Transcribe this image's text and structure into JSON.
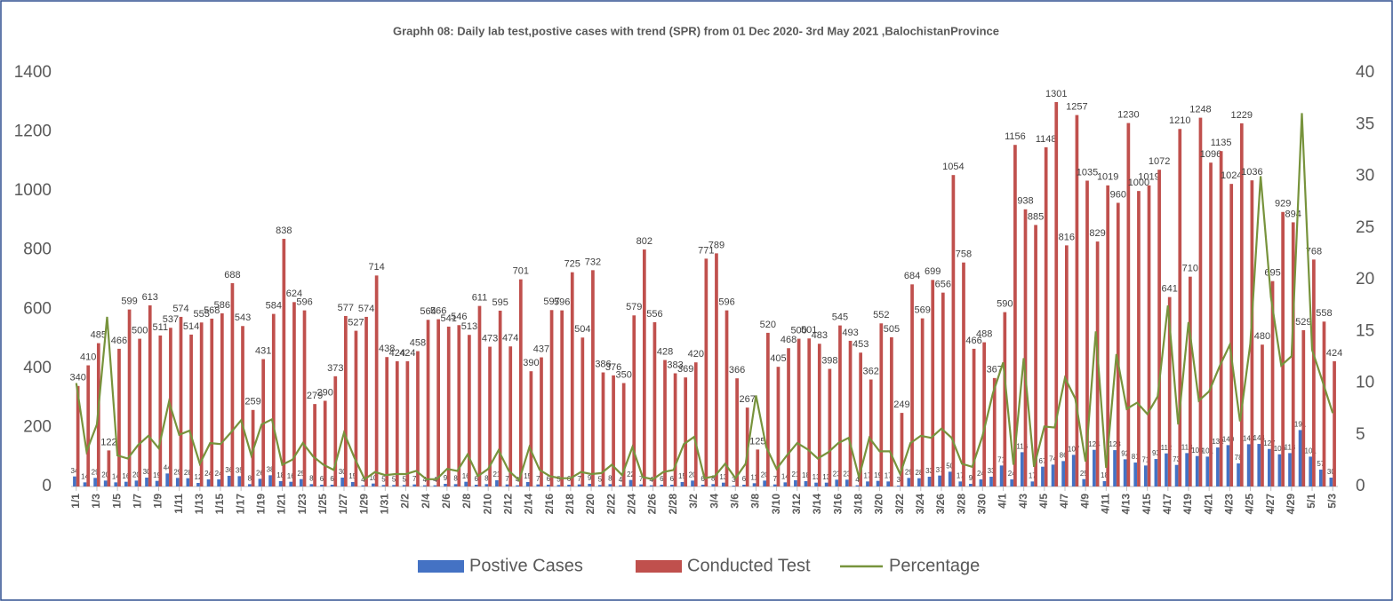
{
  "chart_data": {
    "type": "bar_line",
    "title": "Graphh 08: Daily lab test,postive cases with trend (SPR) from 01 Dec 2020- 3rd  May  2021 ,BalochistanProvince",
    "categories": [
      "1/1",
      null,
      "1/3",
      null,
      "1/5",
      null,
      "1/7",
      null,
      "1/9",
      null,
      "1/11",
      null,
      "1/13",
      null,
      "1/15",
      null,
      "1/17",
      null,
      "1/19",
      null,
      "1/21",
      null,
      "1/23",
      null,
      "1/25",
      null,
      "1/27",
      null,
      "1/29",
      null,
      "1/31",
      null,
      "2/2",
      null,
      "2/4",
      null,
      "2/6",
      null,
      "2/8",
      null,
      "2/10",
      null,
      "2/12",
      null,
      "2/14",
      null,
      "2/16",
      null,
      "2/18",
      null,
      "2/20",
      null,
      "2/22",
      null,
      "2/24",
      null,
      "2/26",
      null,
      "2/28",
      null,
      "3/2",
      null,
      "3/4",
      null,
      "3/6",
      null,
      "3/8",
      null,
      "3/10",
      null,
      "3/12",
      null,
      "3/14",
      null,
      "3/16",
      null,
      "3/18",
      null,
      "3/20",
      null,
      "3/22",
      null,
      "3/24",
      null,
      "3/26",
      null,
      "3/28",
      null,
      "3/30",
      null,
      "4/1",
      null,
      "4/3",
      null,
      "4/5",
      null,
      "4/7",
      null,
      "4/9",
      null,
      "4/11",
      null,
      "4/13",
      null,
      "4/15",
      null,
      "4/17",
      null,
      "4/19",
      null,
      "4/21",
      null,
      "4/23",
      null,
      "4/25",
      null,
      "4/27",
      null,
      "4/29",
      null,
      "5/1",
      null,
      "5/3"
    ],
    "series": [
      {
        "name": "Postive Cases",
        "color": "#4472c4",
        "axis": "y",
        "values": [
          34,
          14,
          29,
          20,
          14,
          16,
          20,
          30,
          19,
          44,
          29,
          28,
          12,
          24,
          24,
          36,
          35,
          8,
          26,
          38,
          18,
          16,
          25,
          8,
          6,
          6,
          30,
          15,
          4,
          10,
          5,
          5,
          5,
          7,
          4,
          4,
          9,
          8,
          16,
          6,
          8,
          21,
          7,
          4,
          15,
          7,
          6,
          5,
          6,
          7,
          9,
          5,
          8,
          4,
          22,
          7,
          4,
          6,
          6,
          15,
          20,
          6,
          8,
          13,
          3,
          6,
          11,
          20,
          7,
          14,
          21,
          18,
          13,
          13,
          23,
          23,
          4,
          17,
          19,
          17,
          3,
          29,
          28,
          33,
          37,
          50,
          17,
          9,
          24,
          33,
          71,
          24,
          116,
          17,
          67,
          74,
          86,
          107,
          25,
          124,
          18,
          123,
          92,
          81,
          71,
          93,
          112,
          73,
          113,
          103,
          101,
          132,
          140,
          78,
          143,
          144,
          127,
          109,
          113,
          191,
          101,
          57,
          30
        ]
      },
      {
        "name": "Conducted Test",
        "color": "#c0504d",
        "axis": "y",
        "values": [
          340,
          410,
          485,
          122,
          466,
          599,
          500,
          613,
          511,
          537,
          574,
          514,
          555,
          568,
          586,
          688,
          543,
          259,
          431,
          584,
          838,
          624,
          596,
          279,
          290,
          373,
          577,
          527,
          574,
          714,
          438,
          424,
          424,
          458,
          564,
          566,
          541,
          546,
          513,
          611,
          473,
          595,
          474,
          701,
          390,
          437,
          597,
          596,
          725,
          504,
          732,
          386,
          376,
          350,
          579,
          802,
          556,
          428,
          383,
          369,
          420,
          771,
          789,
          596,
          366,
          267,
          125,
          520,
          405,
          468,
          500,
          501,
          483,
          398,
          545,
          493,
          453,
          362,
          552,
          505,
          249,
          684,
          569,
          699,
          656,
          1054,
          758,
          466,
          488,
          367,
          590,
          1156,
          938,
          885,
          1148,
          1301,
          816,
          1257,
          1035,
          829,
          1019,
          960,
          1230,
          1000,
          1019,
          1072,
          641,
          1210,
          710,
          1248,
          1096,
          1135,
          1024,
          1229,
          1036,
          480,
          695,
          929,
          894,
          529,
          768,
          558,
          424
        ]
      },
      {
        "name": "Percentage",
        "color": "#77933c",
        "axis": "y2",
        "values": [
          10,
          3.4,
          6,
          16.4,
          3,
          2.7,
          4,
          4.9,
          3.7,
          8.2,
          5,
          5.4,
          2.2,
          4.2,
          4.1,
          5.2,
          6.4,
          3,
          6,
          6.5,
          2.1,
          2.6,
          4.2,
          2.9,
          2.1,
          1.6,
          5.2,
          2.8,
          0.7,
          1.4,
          1.1,
          1.2,
          1.2,
          1.5,
          0.7,
          0.7,
          1.7,
          1.5,
          3.1,
          1,
          1.7,
          3.5,
          1.5,
          0.6,
          3.8,
          1.6,
          1,
          0.8,
          0.8,
          1.4,
          1.2,
          1.3,
          2.1,
          1.1,
          3.8,
          0.9,
          0.7,
          1.4,
          1.6,
          4.1,
          4.8,
          0.8,
          1,
          2.2,
          0.8,
          2.2,
          8.8,
          3.8,
          1.7,
          3,
          4.2,
          3.6,
          2.7,
          3.3,
          4.2,
          4.7,
          0.9,
          4.7,
          3.4,
          3.4,
          1.2,
          4.2,
          4.9,
          4.7,
          5.6,
          4.7,
          2.2,
          1.9,
          4.9,
          9,
          12,
          2.1,
          12.4,
          1.9,
          5.8,
          5.7,
          10.5,
          8.5,
          2.4,
          15,
          1.8,
          12.8,
          7.5,
          8.1,
          7,
          8.7,
          17.5,
          6,
          15.9,
          8.3,
          9.2,
          11.6,
          13.7,
          6.3,
          13.8,
          30,
          18.3,
          11.7,
          12.6,
          36.1,
          13.2,
          10.2,
          7.1
        ]
      }
    ],
    "ylim": [
      0,
      1400
    ],
    "yticks": [
      0,
      200,
      400,
      600,
      800,
      1000,
      1200,
      1400
    ],
    "y2lim": [
      0,
      40
    ],
    "y2ticks": [
      0,
      5,
      10,
      15,
      20,
      25,
      30,
      35,
      40
    ],
    "grid": false,
    "legend": "bottom"
  }
}
